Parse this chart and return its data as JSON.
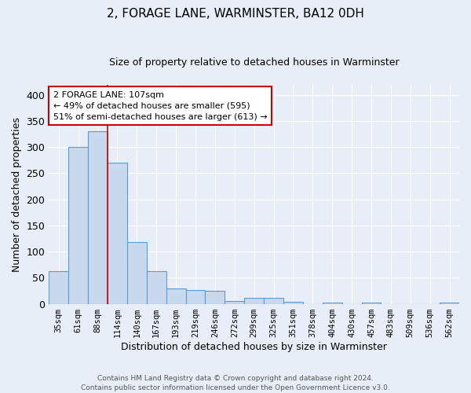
{
  "title1": "2, FORAGE LANE, WARMINSTER, BA12 0DH",
  "title2": "Size of property relative to detached houses in Warminster",
  "xlabel": "Distribution of detached houses by size in Warminster",
  "ylabel": "Number of detached properties",
  "categories": [
    "35sqm",
    "61sqm",
    "88sqm",
    "114sqm",
    "140sqm",
    "167sqm",
    "193sqm",
    "219sqm",
    "246sqm",
    "272sqm",
    "299sqm",
    "325sqm",
    "351sqm",
    "378sqm",
    "404sqm",
    "430sqm",
    "457sqm",
    "483sqm",
    "509sqm",
    "536sqm",
    "562sqm"
  ],
  "values": [
    62,
    300,
    330,
    270,
    118,
    63,
    29,
    26,
    25,
    6,
    11,
    11,
    4,
    0,
    3,
    0,
    3,
    0,
    0,
    0,
    3
  ],
  "bar_color": "#c9d9ed",
  "bar_edge_color": "#5b9bd5",
  "background_color": "#e8eef7",
  "grid_color": "#ffffff",
  "annotation_text": "2 FORAGE LANE: 107sqm\n← 49% of detached houses are smaller (595)\n51% of semi-detached houses are larger (613) →",
  "annotation_box_color": "#ffffff",
  "annotation_box_edge_color": "#cc0000",
  "red_line_x": 2.5,
  "ylim": [
    0,
    420
  ],
  "yticks": [
    0,
    50,
    100,
    150,
    200,
    250,
    300,
    350,
    400
  ],
  "footer": "Contains HM Land Registry data © Crown copyright and database right 2024.\nContains public sector information licensed under the Open Government Licence v3.0.",
  "title1_fontsize": 11,
  "title2_fontsize": 9,
  "ylabel_fontsize": 9,
  "xlabel_fontsize": 9,
  "tick_fontsize": 7.5,
  "footer_fontsize": 6.5,
  "annot_fontsize": 8
}
